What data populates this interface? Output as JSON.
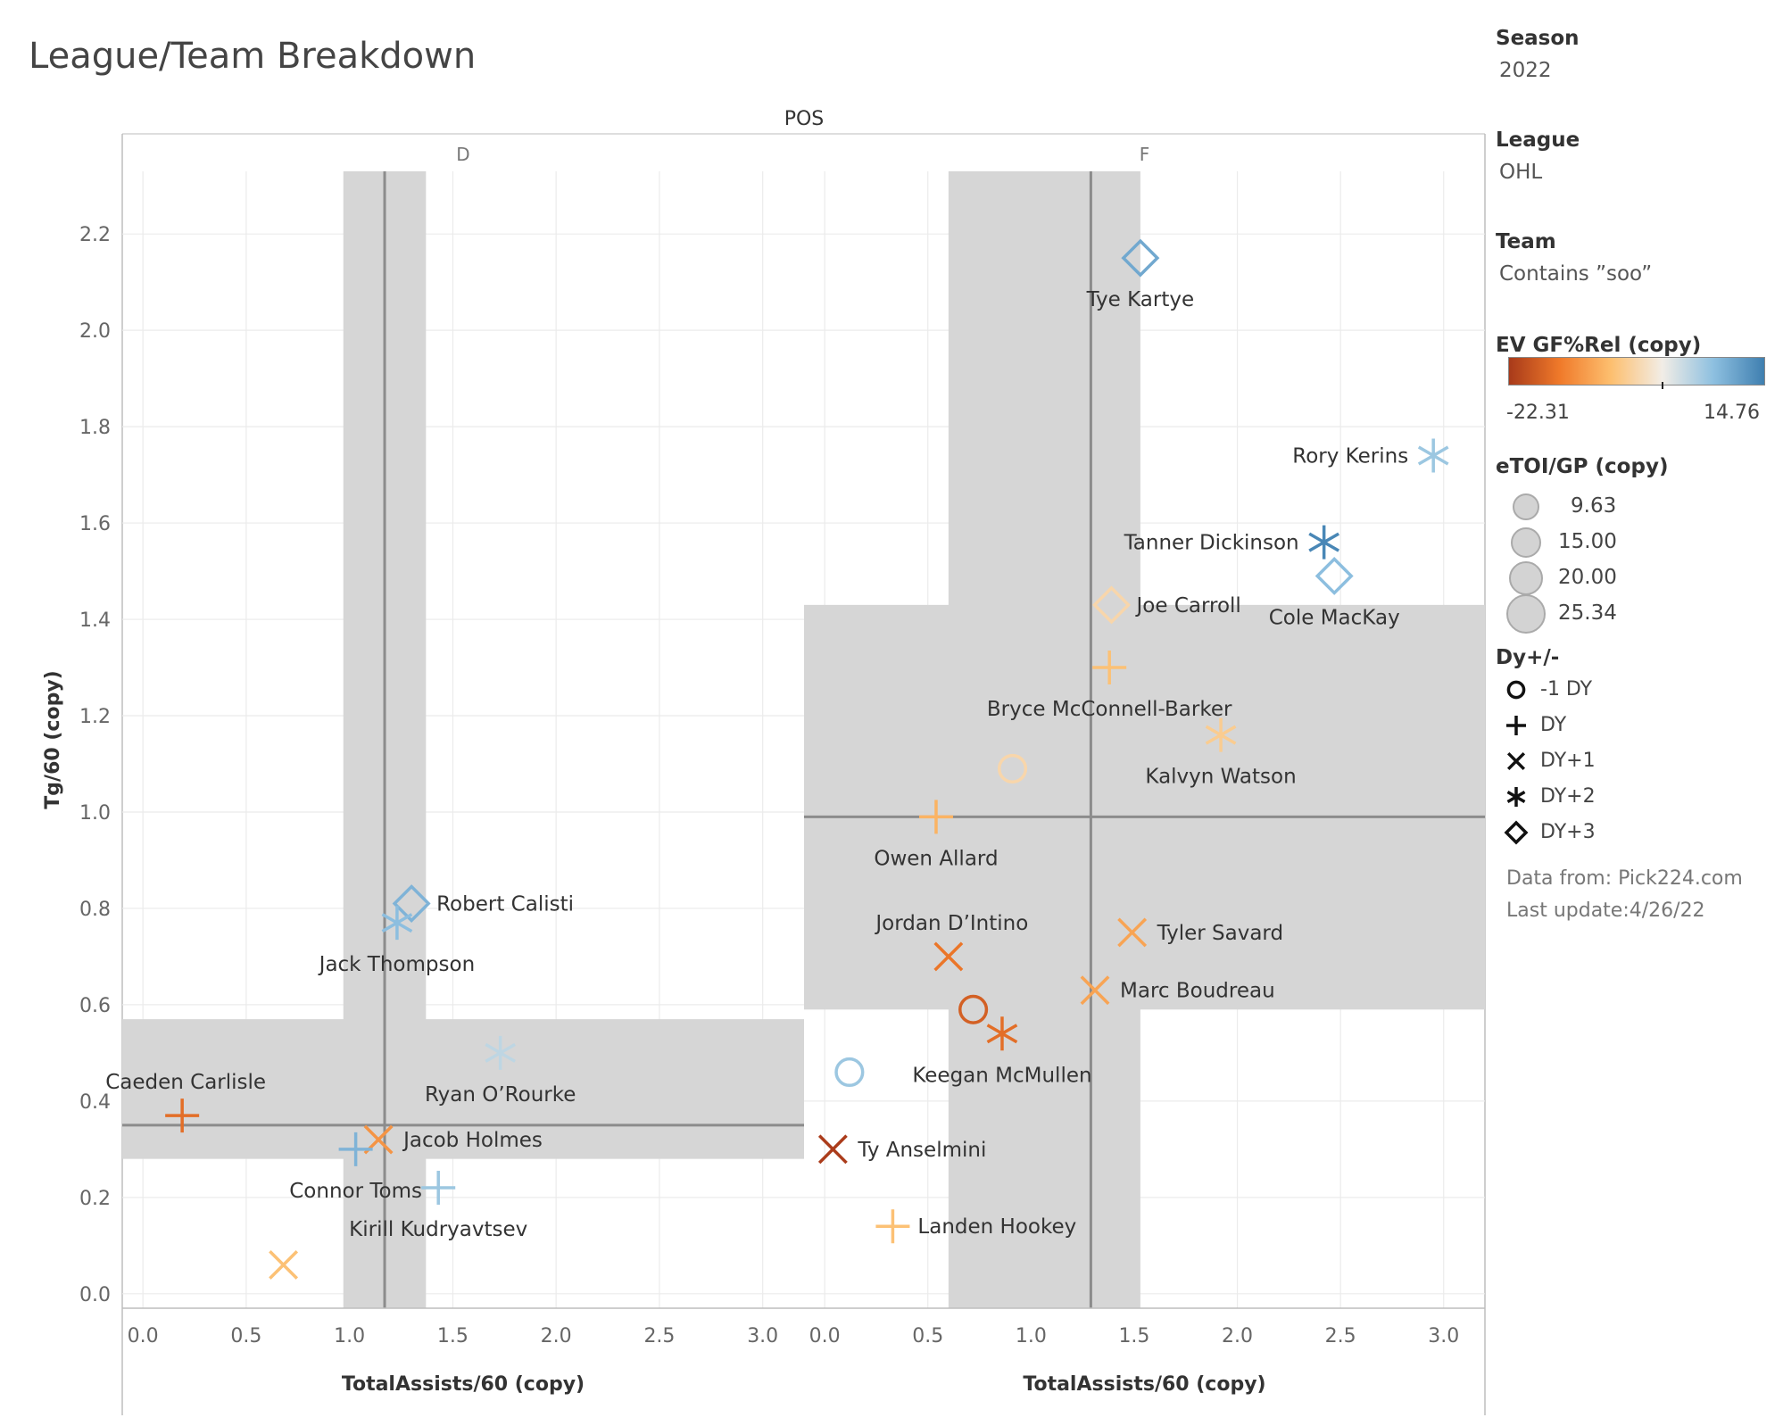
{
  "page": {
    "title": "League/Team Breakdown"
  },
  "filters": {
    "season_label": "Season",
    "season_value": "2022",
    "league_label": "League",
    "league_value": "OHL",
    "team_label": "Team",
    "team_value": "Contains ”soo”"
  },
  "color_legend": {
    "title": "EV GF%Rel (copy)",
    "min_label": "-22.31",
    "max_label": "14.76",
    "min": -22.31,
    "max": 14.76,
    "colors": [
      "#a83a1a",
      "#f07a2a",
      "#fdbf6f",
      "#f2ede6",
      "#8ec0e0",
      "#3f7fb0"
    ]
  },
  "size_legend": {
    "title": "eTOI/GP (copy)",
    "items": [
      "9.63",
      "15.00",
      "20.00",
      "25.34"
    ]
  },
  "shape_legend": {
    "title": "Dy+/-",
    "items": [
      {
        "label": "-1 DY",
        "shape": "circle"
      },
      {
        "label": "DY",
        "shape": "plus"
      },
      {
        "label": "DY+1",
        "shape": "x"
      },
      {
        "label": "DY+2",
        "shape": "asterisk"
      },
      {
        "label": "DY+3",
        "shape": "diamond"
      }
    ]
  },
  "footnotes": {
    "source": "Data from: Pick224.com",
    "updated": "Last update:4/26/22"
  },
  "chart_data": {
    "type": "scatter",
    "column_header": "POS",
    "xlabel": "TotalAssists/60 (copy)",
    "ylabel": "Tg/60 (copy)",
    "ylim": [
      -0.03,
      2.33
    ],
    "yticks": [
      "0.0",
      "0.2",
      "0.4",
      "0.6",
      "0.8",
      "1.0",
      "1.2",
      "1.4",
      "1.6",
      "1.8",
      "2.0",
      "2.2"
    ],
    "grid": true,
    "panels": [
      {
        "name": "D",
        "xlim": [
          -0.1,
          3.2
        ],
        "xticks": [
          "0.0",
          "0.5",
          "1.0",
          "1.5",
          "2.0",
          "2.5",
          "3.0"
        ],
        "ref_x": 1.17,
        "band_x": [
          0.97,
          1.37
        ],
        "ref_y": 0.35,
        "band_y": [
          0.28,
          0.57
        ],
        "points": [
          {
            "name": "Robert Calisti",
            "x": 1.3,
            "y": 0.81,
            "dy": "DY+3",
            "gfrel": 10,
            "label": "right"
          },
          {
            "name": "Jack Thompson",
            "x": 1.23,
            "y": 0.77,
            "dy": "DY+2",
            "gfrel": 9,
            "label": "below"
          },
          {
            "name": "Ryan O’Rourke",
            "x": 1.73,
            "y": 0.5,
            "dy": "DY+2",
            "gfrel": 6,
            "label": "below"
          },
          {
            "name": "Caeden Carlisle",
            "x": 0.19,
            "y": 0.37,
            "dy": "DY",
            "gfrel": -15,
            "label": "above"
          },
          {
            "name": "Jacob Holmes",
            "x": 1.14,
            "y": 0.32,
            "dy": "DY+1",
            "gfrel": -10,
            "label": "right"
          },
          {
            "name": "Connor Toms",
            "x": 1.03,
            "y": 0.3,
            "dy": "DY",
            "gfrel": 10,
            "label": "below"
          },
          {
            "name": "Kirill Kudryavtsev",
            "x": 1.43,
            "y": 0.22,
            "dy": "DY",
            "gfrel": 8,
            "label": "below"
          },
          {
            "name": "",
            "x": 0.68,
            "y": 0.06,
            "dy": "DY+1",
            "gfrel": -4,
            "label": "none"
          }
        ]
      },
      {
        "name": "F",
        "xlim": [
          -0.1,
          3.2
        ],
        "xticks": [
          "0.0",
          "0.5",
          "1.0",
          "1.5",
          "2.0",
          "2.5",
          "3.0"
        ],
        "ref_x": 1.29,
        "band_x": [
          0.6,
          1.53
        ],
        "ref_y": 0.99,
        "band_y": [
          0.59,
          1.43
        ],
        "points": [
          {
            "name": "Tye Kartye",
            "x": 1.53,
            "y": 2.15,
            "dy": "DY+3",
            "gfrel": 11,
            "label": "below"
          },
          {
            "name": "Rory Kerins",
            "x": 2.95,
            "y": 1.74,
            "dy": "DY+2",
            "gfrel": 8,
            "label": "left"
          },
          {
            "name": "Tanner Dickinson",
            "x": 2.42,
            "y": 1.56,
            "dy": "DY+2",
            "gfrel": 14,
            "label": "left"
          },
          {
            "name": "Cole MacKay",
            "x": 2.47,
            "y": 1.49,
            "dy": "DY+3",
            "gfrel": 9,
            "label": "below"
          },
          {
            "name": "Joe Carroll",
            "x": 1.39,
            "y": 1.43,
            "dy": "DY+3",
            "gfrel": 0,
            "label": "right"
          },
          {
            "name": "Bryce McConnell-Barker",
            "x": 1.38,
            "y": 1.3,
            "dy": "DY",
            "gfrel": -4,
            "label": "below"
          },
          {
            "name": "Kalvyn Watson",
            "x": 1.92,
            "y": 1.16,
            "dy": "DY+2",
            "gfrel": -2,
            "label": "below"
          },
          {
            "name": "",
            "x": 0.91,
            "y": 1.09,
            "dy": "-1 DY",
            "gfrel": 0,
            "label": "none"
          },
          {
            "name": "Owen Allard",
            "x": 0.54,
            "y": 0.99,
            "dy": "DY",
            "gfrel": -6,
            "label": "below"
          },
          {
            "name": "Tyler Savard",
            "x": 1.49,
            "y": 0.75,
            "dy": "DY+1",
            "gfrel": -8,
            "label": "right"
          },
          {
            "name": "Jordan D’Intino",
            "x": 0.6,
            "y": 0.7,
            "dy": "DY+1",
            "gfrel": -14,
            "label": "above"
          },
          {
            "name": "Marc Boudreau",
            "x": 1.31,
            "y": 0.63,
            "dy": "DY+1",
            "gfrel": -8,
            "label": "right"
          },
          {
            "name": "",
            "x": 0.72,
            "y": 0.59,
            "dy": "-1 DY",
            "gfrel": -17,
            "label": "none"
          },
          {
            "name": "Keegan McMullen",
            "x": 0.86,
            "y": 0.54,
            "dy": "DY+2",
            "gfrel": -15,
            "label": "below"
          },
          {
            "name": "",
            "x": 0.12,
            "y": 0.46,
            "dy": "-1 DY",
            "gfrel": 8,
            "label": "none"
          },
          {
            "name": "Ty Anselmini",
            "x": 0.04,
            "y": 0.3,
            "dy": "DY+1",
            "gfrel": -22,
            "label": "right"
          },
          {
            "name": "Landen Hookey",
            "x": 0.33,
            "y": 0.14,
            "dy": "DY",
            "gfrel": -4,
            "label": "right"
          }
        ]
      }
    ]
  }
}
